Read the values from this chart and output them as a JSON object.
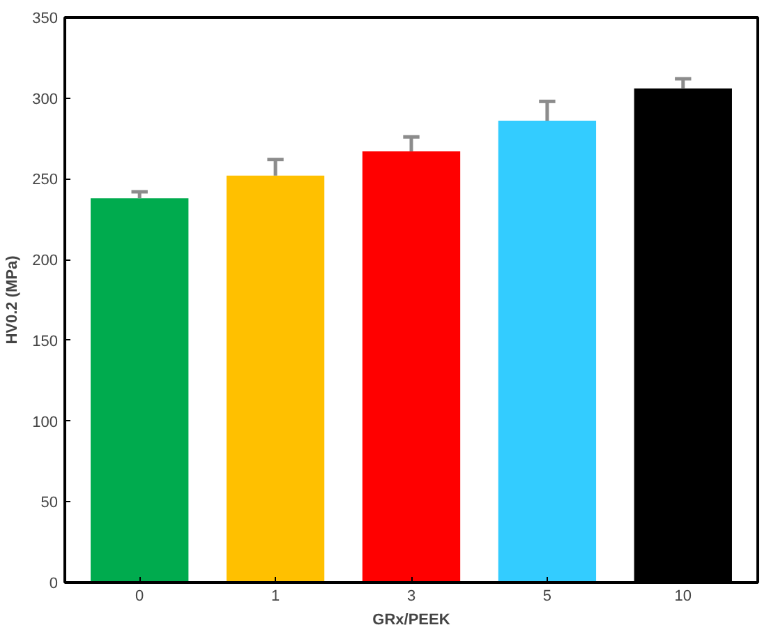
{
  "chart_data": {
    "type": "bar",
    "xlabel": "GRx/PEEK",
    "ylabel": "HV0.2 (MPa)",
    "categories": [
      "0",
      "1",
      "3",
      "5",
      "10"
    ],
    "values": [
      238,
      252,
      267,
      286,
      306
    ],
    "colors": [
      "#00ab4e",
      "#ffc000",
      "#ff0000",
      "#33ccff",
      "#000000"
    ],
    "errors": [
      4,
      10,
      9,
      12,
      6
    ],
    "ylim": [
      0,
      350
    ],
    "yticks": [
      0,
      50,
      100,
      150,
      200,
      250,
      300,
      350
    ],
    "grid": false
  }
}
